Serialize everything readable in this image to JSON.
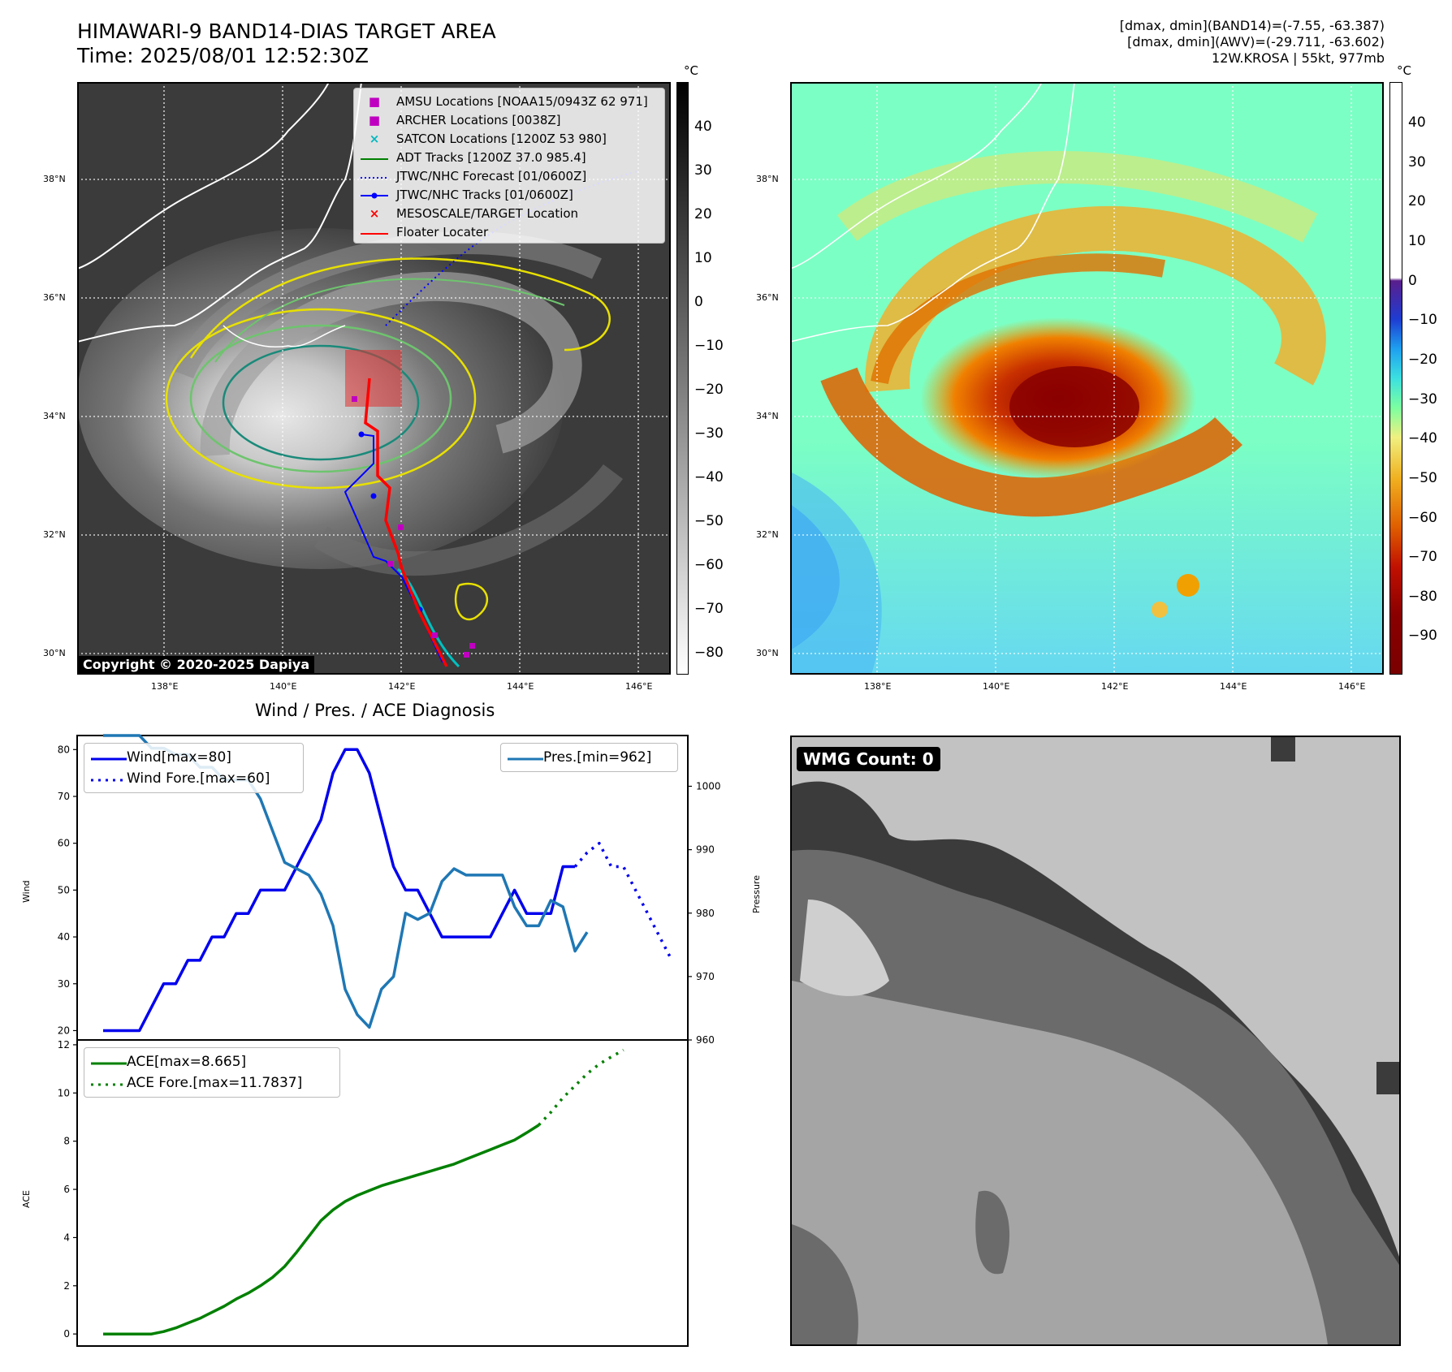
{
  "header": {
    "title_line1": "HIMAWARI-9 BAND14-DIAS TARGET AREA",
    "title_line2": "Time: 2025/08/01 12:52:30Z",
    "info_line1": "[dmax, dmin](BAND14)=(-7.55, -63.387)",
    "info_line2": "[dmax, dmin](AWV)=(-29.711, -63.602)",
    "info_line3": "12W.KROSA | 55kt, 977mb"
  },
  "map_axes": {
    "lat_labels": [
      "38°N",
      "36°N",
      "34°N",
      "32°N",
      "30°N"
    ],
    "lon_labels": [
      "138°E",
      "140°E",
      "142°E",
      "144°E",
      "146°E"
    ]
  },
  "left_map": {
    "colorbar_unit": "°C",
    "colorbar_ticks": [
      "40",
      "30",
      "20",
      "10",
      "0",
      "−10",
      "−20",
      "−30",
      "−40",
      "−50",
      "−60",
      "−70",
      "−80"
    ],
    "copyright": "Copyright © 2020-2025 Dapiya",
    "legend": [
      {
        "label": "AMSU Locations [NOAA15/0943Z 62 971]",
        "color": "#c000c0",
        "kind": "square"
      },
      {
        "label": "ARCHER Locations [0038Z]",
        "color": "#c000c0",
        "kind": "square"
      },
      {
        "label": "SATCON Locations [1200Z 53 980]",
        "color": "#00b8c0",
        "kind": "x"
      },
      {
        "label": "ADT Tracks [1200Z 37.0 985.4]",
        "color": "#008000",
        "kind": "line"
      },
      {
        "label": "JTWC/NHC Forecast [01/0600Z]",
        "color": "#0000ff",
        "kind": "dotted"
      },
      {
        "label": "JTWC/NHC Tracks [01/0600Z]",
        "color": "#0000ff",
        "kind": "line-dot"
      },
      {
        "label": "MESOSCALE/TARGET Location",
        "color": "#ff0000",
        "kind": "x"
      },
      {
        "label": "Floater Locater",
        "color": "#ff0000",
        "kind": "line"
      }
    ]
  },
  "right_map": {
    "colorbar_unit": "°C",
    "colorbar_ticks": [
      "40",
      "30",
      "20",
      "10",
      "0",
      "−10",
      "−20",
      "−30",
      "−40",
      "−50",
      "−60",
      "−70",
      "−80",
      "−90"
    ]
  },
  "diagnosis": {
    "title": "Wind / Pres. / ACE Diagnosis",
    "wind_axis_label": "Wind",
    "pressure_axis_label": "Pressure",
    "ace_axis_label": "ACE",
    "wind_legend": [
      "Wind[max=80]",
      "Wind Fore.[max=60]"
    ],
    "pres_legend": "Pres.[min=962]",
    "ace_legend": [
      "ACE[max=8.665]",
      "ACE Fore.[max=11.7837]"
    ]
  },
  "wmg": {
    "label": "WMG Count: 0"
  },
  "chart_data": [
    {
      "type": "line",
      "title": "Wind / Pres. / ACE Diagnosis",
      "ylabel": "Wind",
      "ylim": [
        18,
        83
      ],
      "y_ticks": [
        20,
        30,
        40,
        50,
        60,
        70,
        80
      ],
      "series": [
        {
          "name": "Wind[max=80]",
          "color": "#0000ee",
          "values": [
            20,
            20,
            20,
            20,
            25,
            30,
            30,
            35,
            35,
            40,
            40,
            45,
            45,
            50,
            50,
            50,
            55,
            60,
            65,
            75,
            80,
            80,
            75,
            65,
            55,
            50,
            50,
            45,
            40,
            40,
            40,
            40,
            40,
            45,
            50,
            45,
            45,
            45,
            55,
            55
          ]
        },
        {
          "name": "Wind Fore.[max=60]",
          "color": "#0000ee",
          "dotted": true,
          "values": [
            55,
            58,
            60,
            55,
            55,
            50,
            45,
            40,
            35
          ]
        }
      ]
    },
    {
      "type": "line",
      "ylabel": "Pressure",
      "ylim": [
        960,
        1008
      ],
      "y_ticks": [
        960,
        970,
        980,
        990,
        1000
      ],
      "series": [
        {
          "name": "Pres.[min=962]",
          "color": "#1f77b4",
          "values": [
            1008,
            1008,
            1008,
            1008,
            1006,
            1006,
            1005,
            1005,
            1003,
            1003,
            1001,
            1001,
            1001,
            998,
            993,
            988,
            987,
            986,
            983,
            978,
            968,
            964,
            962,
            968,
            970,
            980,
            979,
            980,
            985,
            987,
            986,
            986,
            986,
            986,
            981,
            978,
            978,
            982,
            981,
            974,
            977
          ]
        }
      ]
    },
    {
      "type": "line",
      "ylabel": "ACE",
      "ylim": [
        -0.5,
        12.2
      ],
      "y_ticks": [
        0,
        2,
        4,
        6,
        8,
        10,
        12
      ],
      "series": [
        {
          "name": "ACE[max=8.665]",
          "color": "#008000",
          "values": [
            0,
            0,
            0,
            0,
            0,
            0.1,
            0.25,
            0.45,
            0.65,
            0.9,
            1.15,
            1.45,
            1.7,
            2.0,
            2.35,
            2.8,
            3.4,
            4.05,
            4.7,
            5.15,
            5.5,
            5.75,
            5.95,
            6.15,
            6.3,
            6.45,
            6.6,
            6.75,
            6.9,
            7.05,
            7.25,
            7.45,
            7.65,
            7.85,
            8.05,
            8.35,
            8.665
          ]
        },
        {
          "name": "ACE Fore.[max=11.7837]",
          "color": "#008000",
          "dotted": true,
          "values": [
            8.665,
            9.2,
            9.8,
            10.3,
            10.8,
            11.2,
            11.5,
            11.7837
          ]
        }
      ]
    }
  ]
}
